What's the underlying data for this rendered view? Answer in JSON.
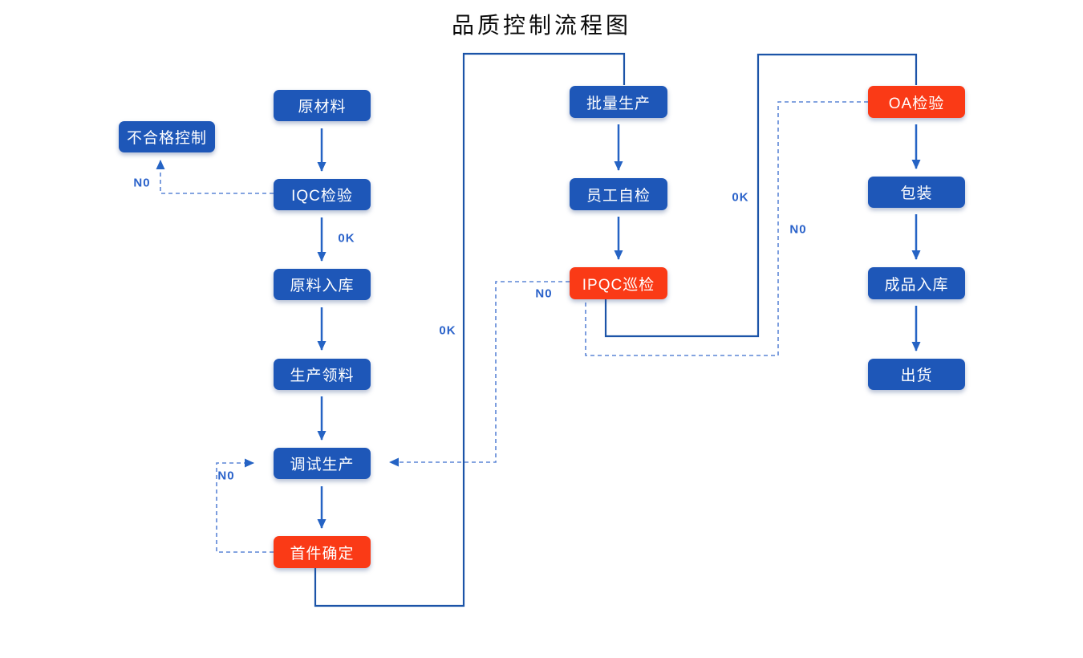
{
  "title": "品质控制流程图",
  "colors": {
    "box_blue": "#1E57B8",
    "box_red": "#FA3A16",
    "route_line": "#1C54A8",
    "arrow_line": "#2563C4",
    "dashed_line": "#5B85D6",
    "edge_label": "#2A62CA",
    "box_text": "#FFFFFF",
    "title_text": "#0A0A0A"
  },
  "nodes": [
    {
      "id": "nonconforming-control",
      "label": "不合格控制",
      "variant": "blue"
    },
    {
      "id": "raw-material",
      "label": "原材料",
      "variant": "blue"
    },
    {
      "id": "iqc-inspection",
      "label": "IQC检验",
      "variant": "blue"
    },
    {
      "id": "raw-material-warehousing",
      "label": "原料入库",
      "variant": "blue"
    },
    {
      "id": "production-picking",
      "label": "生产领料",
      "variant": "blue"
    },
    {
      "id": "trial-production",
      "label": "调试生产",
      "variant": "blue"
    },
    {
      "id": "first-article-confirmation",
      "label": "首件确定",
      "variant": "red"
    },
    {
      "id": "mass-production",
      "label": "批量生产",
      "variant": "blue"
    },
    {
      "id": "employee-self-check",
      "label": "员工自检",
      "variant": "blue"
    },
    {
      "id": "ipqc-patrol-inspection",
      "label": "IPQC巡检",
      "variant": "red"
    },
    {
      "id": "oa-inspection",
      "label": "OA检验",
      "variant": "red"
    },
    {
      "id": "packaging",
      "label": "包装",
      "variant": "blue"
    },
    {
      "id": "finished-goods-warehousing",
      "label": "成品入库",
      "variant": "blue"
    },
    {
      "id": "shipment",
      "label": "出货",
      "variant": "blue"
    }
  ],
  "edge_labels": [
    {
      "id": "iqc-no",
      "text": "N0"
    },
    {
      "id": "iqc-ok",
      "text": "0K"
    },
    {
      "id": "first-article-ok",
      "text": "0K"
    },
    {
      "id": "first-article-no",
      "text": "N0"
    },
    {
      "id": "ipqc-no",
      "text": "N0"
    },
    {
      "id": "ipqc-ok",
      "text": "0K"
    },
    {
      "id": "oa-no",
      "text": "N0"
    }
  ]
}
